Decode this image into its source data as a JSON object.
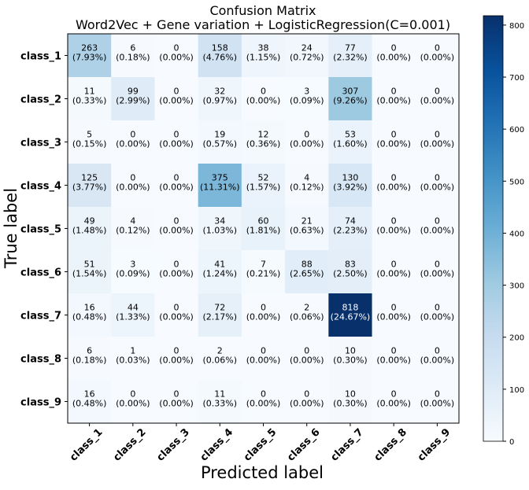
{
  "chart_data": {
    "type": "heatmap",
    "title": "Confusion Matrix",
    "subtitle": "Word2Vec + Gene variation + LogisticRegression(C=0.001)",
    "xlabel": "Predicted label",
    "ylabel": "True label",
    "row_labels": [
      "class_1",
      "class_2",
      "class_3",
      "class_4",
      "class_5",
      "class_6",
      "class_7",
      "class_8",
      "class_9"
    ],
    "col_labels": [
      "class_1",
      "class_2",
      "class_3",
      "class_4",
      "class_5",
      "class_6",
      "class_7",
      "class_8",
      "class_9"
    ],
    "counts": [
      [
        263,
        6,
        0,
        158,
        38,
        24,
        77,
        0,
        0
      ],
      [
        11,
        99,
        0,
        32,
        0,
        3,
        307,
        0,
        0
      ],
      [
        5,
        0,
        0,
        19,
        12,
        0,
        53,
        0,
        0
      ],
      [
        125,
        0,
        0,
        375,
        52,
        4,
        130,
        0,
        0
      ],
      [
        49,
        4,
        0,
        34,
        60,
        21,
        74,
        0,
        0
      ],
      [
        51,
        3,
        0,
        41,
        7,
        88,
        83,
        0,
        0
      ],
      [
        16,
        44,
        0,
        72,
        0,
        2,
        818,
        0,
        0
      ],
      [
        6,
        1,
        0,
        2,
        0,
        0,
        10,
        0,
        0
      ],
      [
        16,
        0,
        0,
        11,
        0,
        0,
        10,
        0,
        0
      ]
    ],
    "percentages": [
      [
        "(7.93%)",
        "(0.18%)",
        "(0.00%)",
        "(4.76%)",
        "(1.15%)",
        "(0.72%)",
        "(2.32%)",
        "(0.00%)",
        "(0.00%)"
      ],
      [
        "(0.33%)",
        "(2.99%)",
        "(0.00%)",
        "(0.97%)",
        "(0.00%)",
        "(0.09%)",
        "(9.26%)",
        "(0.00%)",
        "(0.00%)"
      ],
      [
        "(0.15%)",
        "(0.00%)",
        "(0.00%)",
        "(0.57%)",
        "(0.36%)",
        "(0.00%)",
        "(1.60%)",
        "(0.00%)",
        "(0.00%)"
      ],
      [
        "(3.77%)",
        "(0.00%)",
        "(0.00%)",
        "(11.31%)",
        "(1.57%)",
        "(0.12%)",
        "(3.92%)",
        "(0.00%)",
        "(0.00%)"
      ],
      [
        "(1.48%)",
        "(0.12%)",
        "(0.00%)",
        "(1.03%)",
        "(1.81%)",
        "(0.63%)",
        "(2.23%)",
        "(0.00%)",
        "(0.00%)"
      ],
      [
        "(1.54%)",
        "(0.09%)",
        "(0.00%)",
        "(1.24%)",
        "(0.21%)",
        "(2.65%)",
        "(2.50%)",
        "(0.00%)",
        "(0.00%)"
      ],
      [
        "(0.48%)",
        "(1.33%)",
        "(0.00%)",
        "(2.17%)",
        "(0.00%)",
        "(0.06%)",
        "(24.67%)",
        "(0.00%)",
        "(0.00%)"
      ],
      [
        "(0.18%)",
        "(0.03%)",
        "(0.00%)",
        "(0.06%)",
        "(0.00%)",
        "(0.00%)",
        "(0.30%)",
        "(0.00%)",
        "(0.00%)"
      ],
      [
        "(0.48%)",
        "(0.00%)",
        "(0.00%)",
        "(0.33%)",
        "(0.00%)",
        "(0.00%)",
        "(0.30%)",
        "(0.00%)",
        "(0.00%)"
      ]
    ],
    "colorbar": {
      "colormap": "Blues",
      "range": [
        0,
        818
      ],
      "ticks": [
        0,
        100,
        200,
        300,
        400,
        500,
        600,
        700,
        800
      ]
    }
  }
}
